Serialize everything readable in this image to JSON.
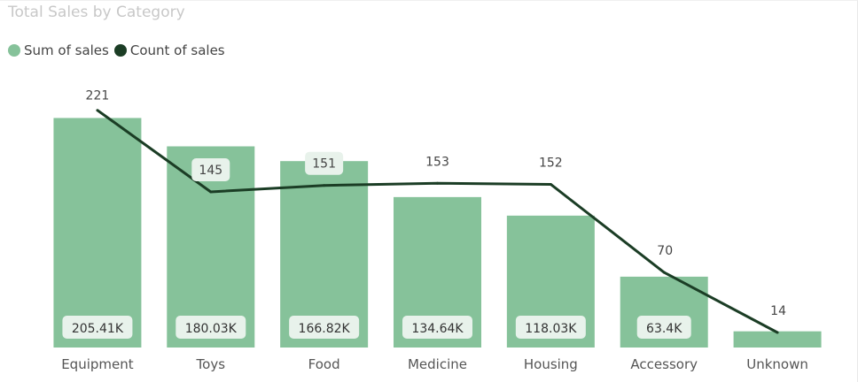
{
  "colors": {
    "bar": "#86c29a",
    "line": "#1b3d25",
    "label_bg": "#e8f2eb",
    "title": "#c8c8c8"
  },
  "chart_data": {
    "type": "bar",
    "title": "Total Sales by Category",
    "categories": [
      "Equipment",
      "Toys",
      "Food",
      "Medicine",
      "Housing",
      "Accessory",
      "Unknown"
    ],
    "series": [
      {
        "name": "Sum of sales",
        "type": "bar",
        "values": [
          205410,
          180030,
          166820,
          134640,
          118030,
          63400,
          14500
        ],
        "labels": [
          "205.41K",
          "180.03K",
          "166.82K",
          "134.64K",
          "118.03K",
          "63.4K",
          ""
        ]
      },
      {
        "name": "Count of sales",
        "type": "line",
        "values": [
          221,
          145,
          151,
          153,
          152,
          70,
          14
        ],
        "labels": [
          "221",
          "145",
          "151",
          "153",
          "152",
          "70",
          "14"
        ]
      }
    ],
    "ylim_sales": [
      0,
      220000
    ],
    "ylim_count": [
      0,
      229
    ],
    "legend_position": "top-left",
    "grid": false
  }
}
